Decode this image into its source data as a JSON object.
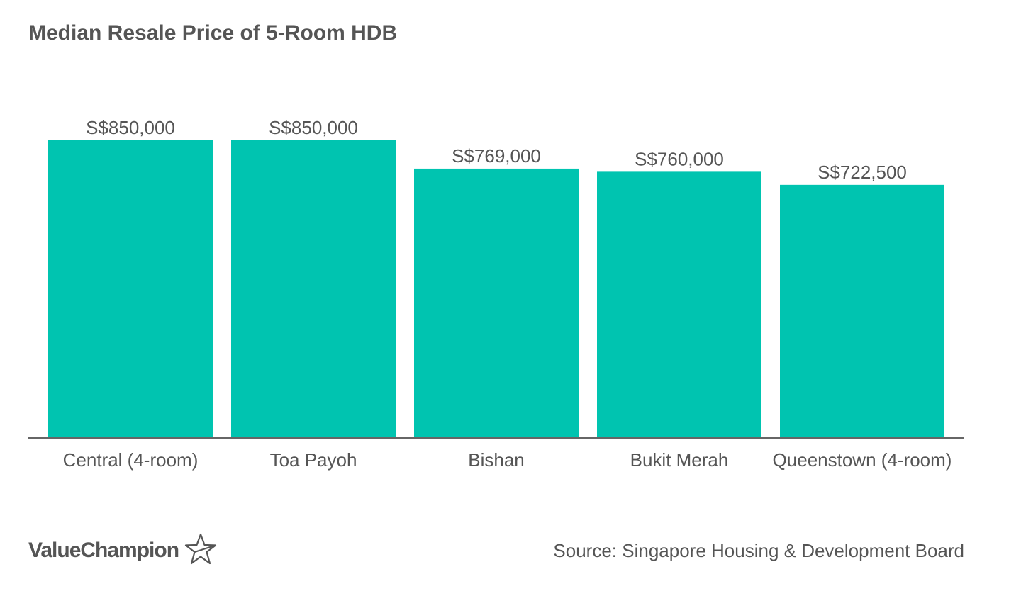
{
  "chart_data": {
    "type": "bar",
    "title": "Median Resale Price of 5-Room HDB",
    "categories": [
      "Central (4-room)",
      "Toa Payoh",
      "Bishan",
      "Bukit Merah",
      "Queenstown (4-room)"
    ],
    "values": [
      850000,
      850000,
      769000,
      760000,
      722500
    ],
    "value_labels": [
      "S$850,000",
      "S$850,000",
      "S$769,000",
      "S$760,000",
      "S$722,500"
    ],
    "ylim": [
      0,
      850000
    ],
    "grid": false,
    "bar_color": "#00C4B0",
    "axis_color": "#666666"
  },
  "branding": {
    "logo_text": "ValueChampion",
    "logo_icon": "star-outline-icon"
  },
  "footer": {
    "source": "Source: Singapore Housing & Development Board"
  }
}
